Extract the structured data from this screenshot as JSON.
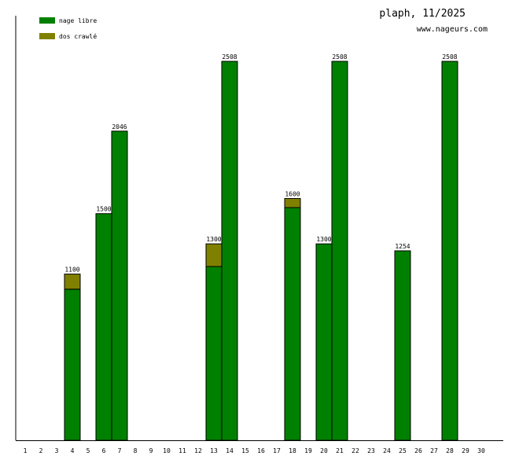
{
  "header": {
    "title": "plaph, 11/2025",
    "site": "www.nageurs.com"
  },
  "colors": {
    "nage_libre": "#008000",
    "dos_crawle": "#808000",
    "axis": "#000000"
  },
  "chart_data": {
    "type": "bar",
    "stacked": true,
    "categories": [
      "1",
      "2",
      "3",
      "4",
      "5",
      "6",
      "7",
      "8",
      "9",
      "10",
      "11",
      "12",
      "13",
      "14",
      "15",
      "16",
      "17",
      "18",
      "19",
      "20",
      "21",
      "22",
      "23",
      "24",
      "25",
      "26",
      "27",
      "28",
      "29",
      "30"
    ],
    "series": [
      {
        "name": "nage libre",
        "values": [
          0,
          0,
          0,
          1000,
          0,
          1500,
          2046,
          0,
          0,
          0,
          0,
          0,
          1150,
          2508,
          0,
          0,
          0,
          1540,
          0,
          1300,
          2508,
          0,
          0,
          0,
          1254,
          0,
          0,
          2508,
          0,
          0
        ]
      },
      {
        "name": "dos crawlé",
        "values": [
          0,
          0,
          0,
          100,
          0,
          0,
          0,
          0,
          0,
          0,
          0,
          0,
          150,
          0,
          0,
          0,
          0,
          60,
          0,
          0,
          0,
          0,
          0,
          0,
          0,
          0,
          0,
          0,
          0,
          0
        ]
      }
    ],
    "totals_labels": [
      "",
      "",
      "",
      "1100",
      "",
      "1500",
      "2046",
      "",
      "",
      "",
      "",
      "",
      "1300",
      "2508",
      "",
      "",
      "",
      "1600",
      "",
      "1300",
      "2508",
      "",
      "",
      "",
      "1254",
      "",
      "",
      "2508",
      "",
      ""
    ],
    "ylim": [
      0,
      2800
    ],
    "legend_position": "top-left",
    "grid": false
  }
}
